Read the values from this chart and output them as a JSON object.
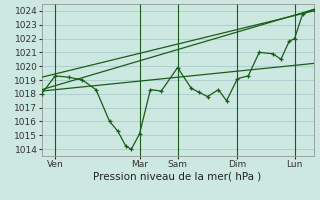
{
  "xlabel": "Pression niveau de la mer( hPa )",
  "bg_color": "#cce8e0",
  "grid_color": "#aacccc",
  "line_color": "#1a5c1a",
  "ylim": [
    1013.5,
    1024.5
  ],
  "xlim": [
    0,
    100
  ],
  "yticks": [
    1014,
    1015,
    1016,
    1017,
    1018,
    1019,
    1020,
    1021,
    1022,
    1023,
    1024
  ],
  "xtick_positions": [
    5,
    36,
    50,
    72,
    93
  ],
  "xtick_labels": [
    "Ven",
    "Mar",
    "Sam",
    "Dim",
    "Lun"
  ],
  "vline_positions": [
    5,
    36,
    50,
    72,
    93
  ],
  "series1_x": [
    0,
    5,
    10,
    15,
    20,
    25,
    28,
    31,
    33,
    36,
    40,
    44,
    50,
    55,
    58,
    61,
    65,
    68,
    72,
    76,
    80,
    85,
    88,
    91,
    93,
    96,
    100
  ],
  "series1_y": [
    1018.0,
    1019.3,
    1019.2,
    1019.0,
    1018.3,
    1016.0,
    1015.3,
    1014.2,
    1014.0,
    1015.1,
    1018.3,
    1018.2,
    1019.9,
    1018.4,
    1018.1,
    1017.8,
    1018.3,
    1017.5,
    1019.1,
    1019.3,
    1021.0,
    1020.9,
    1020.5,
    1021.8,
    1022.0,
    1023.8,
    1024.1
  ],
  "series2_x": [
    0,
    100
  ],
  "series2_y": [
    1019.2,
    1024.0
  ],
  "series3_x": [
    0,
    100
  ],
  "series3_y": [
    1018.3,
    1024.1
  ],
  "series4_x": [
    0,
    100
  ],
  "series4_y": [
    1018.2,
    1020.2
  ],
  "fontsize_label": 7.5,
  "fontsize_tick": 6.5
}
